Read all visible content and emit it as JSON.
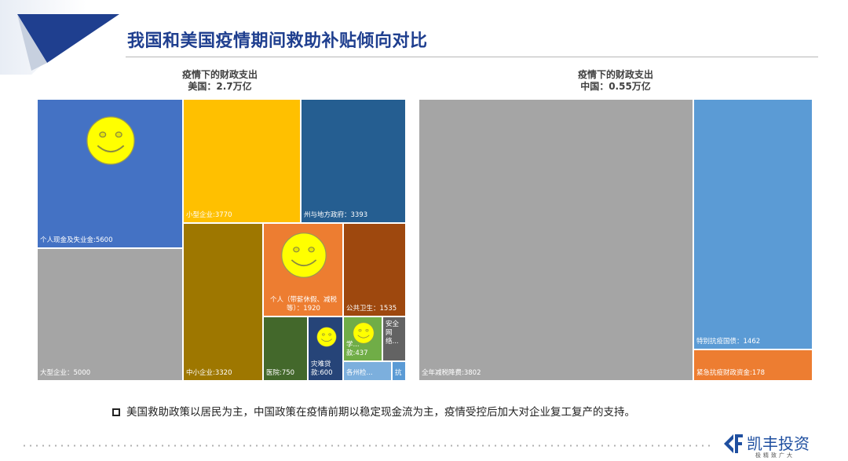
{
  "title": "我国和美国疫情期间救助补贴倾向对比",
  "note": "美国救助政策以居民为主，中国政策在疫情前期以稳定现金流为主，疫情受控后加大对企业复工复产的支持。",
  "logo": {
    "name": "凯丰投资",
    "tagline": "极精致广大",
    "icon": "kaifeng-logo-icon"
  },
  "chart_data": [
    {
      "type": "treemap",
      "title_line1": "疫情下的财政支出",
      "title_line2": "美国：2.7万亿",
      "items": [
        {
          "label": "个人现金及失业金:5600",
          "value": 5600,
          "color": "#4472c4",
          "smiley": true
        },
        {
          "label": "大型企业：5000",
          "value": 5000,
          "color": "#a5a5a5"
        },
        {
          "label": "小型企业:3770",
          "value": 3770,
          "color": "#ffc000"
        },
        {
          "label": "州与地方政府：3393",
          "value": 3393,
          "color": "#255e91"
        },
        {
          "label": "中小企业:3320",
          "value": 3320,
          "color": "#9e7700"
        },
        {
          "label": "个人（带薪休假、减税等）：1920",
          "value": 1920,
          "color": "#ed7d31",
          "smiley": true
        },
        {
          "label": "公共卫生：1535",
          "value": 1535,
          "color": "#9e480e"
        },
        {
          "label": "医院:750",
          "value": 750,
          "color": "#43682b"
        },
        {
          "label": "灾难贷款:600",
          "value": 600,
          "color": "#264478",
          "smiley": true
        },
        {
          "label": "学...款:437",
          "value": 437,
          "color": "#70ad47",
          "smiley": true
        },
        {
          "label": "安全网络...",
          "value": 300,
          "color": "#636363"
        },
        {
          "label": "各州检...",
          "value": 250,
          "color": "#7cafdd"
        },
        {
          "label": "抗",
          "value": 100,
          "color": "#5b9bd5"
        }
      ]
    },
    {
      "type": "treemap",
      "title_line1": "疫情下的财政支出",
      "title_line2": "中国：0.55万亿",
      "items": [
        {
          "label": "全年减税降费:3802",
          "value": 3802,
          "color": "#a5a5a5"
        },
        {
          "label": "特别抗疫国债：1462",
          "value": 1462,
          "color": "#5b9bd5"
        },
        {
          "label": "紧急抗疫财政资金:178",
          "value": 178,
          "color": "#ed7d31"
        }
      ]
    }
  ]
}
